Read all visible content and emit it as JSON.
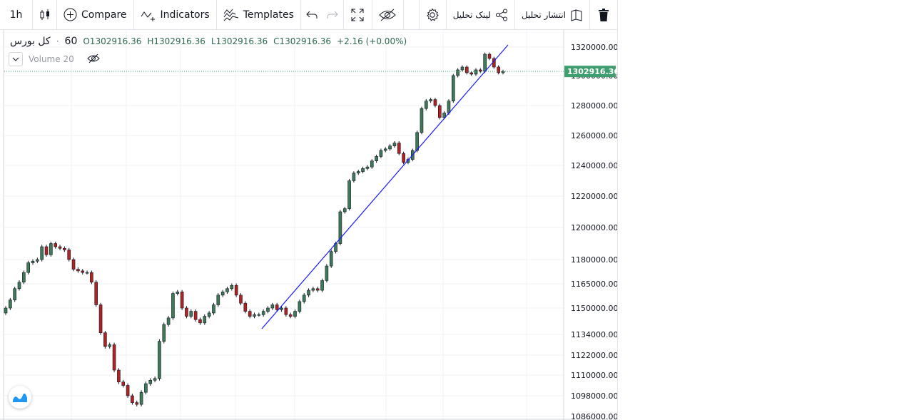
{
  "toolbar": {
    "interval": "1h",
    "compare": "Compare",
    "indicators": "Indicators",
    "templates": "Templates",
    "link_analysis": "لینک تحلیل",
    "publish_analysis": "انتشار تحلیل"
  },
  "legend": {
    "symbol": "کل بورس",
    "interval": "60",
    "open": "O1302916.36",
    "high": "H1302916.36",
    "low": "L1302916.36",
    "close": "C1302916.36",
    "change": "+2.16 (+0.00%)",
    "volume": "Volume 20"
  },
  "colors": {
    "up": "#3e7a57",
    "down": "#b22222",
    "trendline": "#1a1aff",
    "price_badge": "#3f9e6d"
  },
  "chart_data": {
    "type": "candlestick",
    "title": "",
    "xlabel": "",
    "ylabel": "",
    "last_price": "1302916.36",
    "y_tick_labels": [
      "1320000.00",
      "1300000.00",
      "1280000.00",
      "1260000.00",
      "1240000.00",
      "1220000.00",
      "1200000.00",
      "1180000.00",
      "1165000.00",
      "1150000.00",
      "1134000.00",
      "1122000.00",
      "1110000.00",
      "1098000.00",
      "1086000.00"
    ],
    "close_series": [
      1150000,
      1155000,
      1162000,
      1166000,
      1172000,
      1178000,
      1179000,
      1180000,
      1188000,
      1183000,
      1190000,
      1188000,
      1187000,
      1186000,
      1180000,
      1174000,
      1173000,
      1172000,
      1172000,
      1166000,
      1152000,
      1135000,
      1127000,
      1128000,
      1113000,
      1106000,
      1104000,
      1098000,
      1094000,
      1093000,
      1100000,
      1105000,
      1107000,
      1108000,
      1130000,
      1140000,
      1144000,
      1159000,
      1160000,
      1150000,
      1145000,
      1148000,
      1143000,
      1141000,
      1145000,
      1147000,
      1152000,
      1158000,
      1160000,
      1162000,
      1164000,
      1158000,
      1153000,
      1148000,
      1145000,
      1146000,
      1146000,
      1148000,
      1150000,
      1152000,
      1149000,
      1150000,
      1146000,
      1145000,
      1148000,
      1154000,
      1158000,
      1161000,
      1162000,
      1161000,
      1167000,
      1176000,
      1185000,
      1190000,
      1210000,
      1212000,
      1230000,
      1235000,
      1236000,
      1238000,
      1239000,
      1243000,
      1246000,
      1250000,
      1251000,
      1253000,
      1255000,
      1248000,
      1242000,
      1244000,
      1250000,
      1262000,
      1278000,
      1283000,
      1284000,
      1280000,
      1272000,
      1275000,
      1283000,
      1300000,
      1304000,
      1306000,
      1302000,
      1301000,
      1304000,
      1303000,
      1315000,
      1312000,
      1306000,
      1302000,
      1302916.36
    ]
  }
}
